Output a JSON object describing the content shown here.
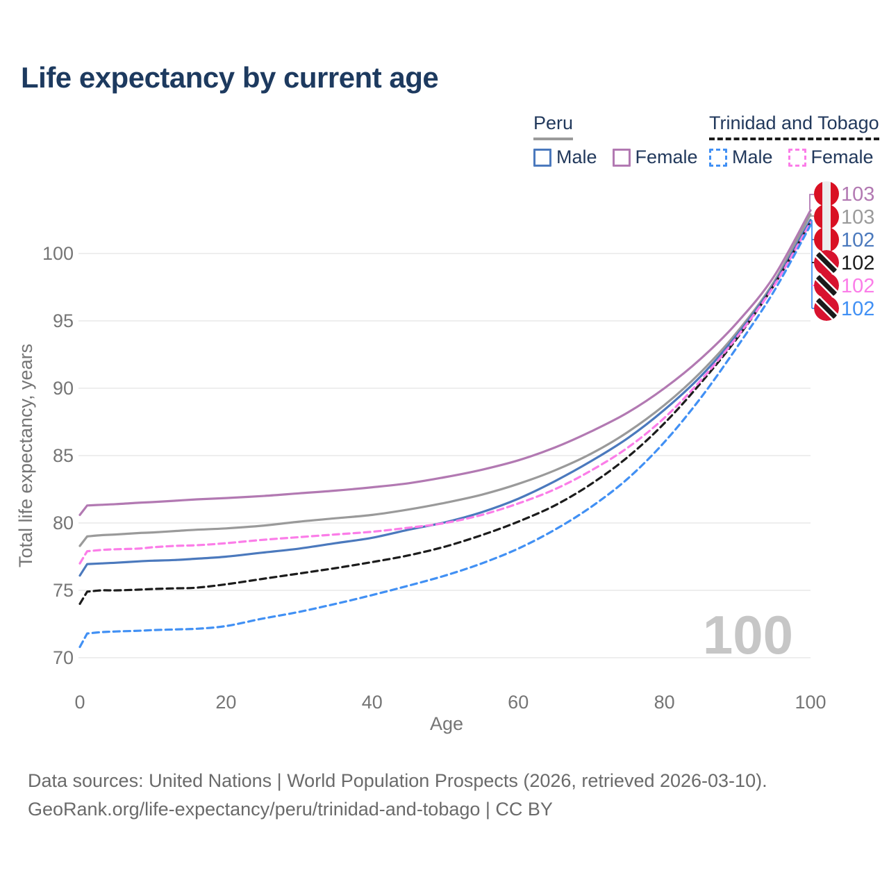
{
  "title": "Life expectancy by current age",
  "legend": {
    "groups": [
      {
        "label": "Peru",
        "line_style": "solid",
        "underline_color": "#9a9a9a",
        "items": [
          {
            "label": "Male",
            "color": "#4b79bd"
          },
          {
            "label": "Female",
            "color": "#b279b2"
          }
        ]
      },
      {
        "label": "Trinidad and Tobago",
        "line_style": "dashed",
        "underline_color": "#1c1c1c",
        "items": [
          {
            "label": "Male",
            "color": "#4190f4"
          },
          {
            "label": "Female",
            "color": "#fb7de8"
          }
        ]
      }
    ]
  },
  "age_counter": "100",
  "footer": {
    "line1": "Data sources: United Nations | World Population Prospects (2026, retrieved 2026-03-10).",
    "line2": "GeoRank.org/life-expectancy/peru/trinidad-and-tobago | CC BY"
  },
  "chart_data": {
    "type": "line",
    "title": "Life expectancy by current age",
    "xlabel": "Age",
    "ylabel": "Total life expectancy, years",
    "xlim": [
      0,
      100
    ],
    "ylim": [
      69.5,
      104.5
    ],
    "xticks": [
      0,
      20,
      40,
      60,
      80,
      100
    ],
    "yticks": [
      70,
      75,
      80,
      85,
      90,
      95,
      100
    ],
    "grid": "horizontal",
    "legend_position": "top-right",
    "series": [
      {
        "id": "peru-female",
        "name": "Peru Female",
        "country": "Peru",
        "sex": "Female",
        "color": "#b279b2",
        "dashed": false,
        "flag_icon": "peru-flag-icon",
        "end_label": "103",
        "label_slot": 0,
        "points": [
          [
            0,
            80.6
          ],
          [
            1,
            81.3
          ],
          [
            3,
            81.35
          ],
          [
            5,
            81.4
          ],
          [
            8,
            81.5
          ],
          [
            10,
            81.55
          ],
          [
            13,
            81.65
          ],
          [
            16,
            81.75
          ],
          [
            20,
            81.85
          ],
          [
            25,
            82.0
          ],
          [
            30,
            82.2
          ],
          [
            35,
            82.4
          ],
          [
            40,
            82.65
          ],
          [
            45,
            82.95
          ],
          [
            50,
            83.4
          ],
          [
            55,
            83.95
          ],
          [
            60,
            84.65
          ],
          [
            65,
            85.6
          ],
          [
            70,
            86.8
          ],
          [
            75,
            88.2
          ],
          [
            80,
            90.0
          ],
          [
            85,
            92.2
          ],
          [
            90,
            94.9
          ],
          [
            95,
            98.3
          ],
          [
            100,
            103.2
          ]
        ]
      },
      {
        "id": "peru-all",
        "name": "Peru",
        "country": "Peru",
        "sex": "All",
        "color": "#9a9a9a",
        "dashed": false,
        "flag_icon": "peru-flag-icon",
        "end_label": "103",
        "label_slot": 1,
        "points": [
          [
            0,
            78.3
          ],
          [
            1,
            79.0
          ],
          [
            3,
            79.1
          ],
          [
            5,
            79.15
          ],
          [
            8,
            79.25
          ],
          [
            10,
            79.3
          ],
          [
            13,
            79.4
          ],
          [
            16,
            79.5
          ],
          [
            20,
            79.6
          ],
          [
            25,
            79.8
          ],
          [
            30,
            80.1
          ],
          [
            35,
            80.35
          ],
          [
            40,
            80.6
          ],
          [
            45,
            81.0
          ],
          [
            50,
            81.5
          ],
          [
            55,
            82.1
          ],
          [
            60,
            82.9
          ],
          [
            65,
            83.9
          ],
          [
            70,
            85.15
          ],
          [
            75,
            86.75
          ],
          [
            80,
            88.75
          ],
          [
            85,
            91.2
          ],
          [
            90,
            94.2
          ],
          [
            95,
            97.9
          ],
          [
            100,
            102.9
          ]
        ]
      },
      {
        "id": "peru-male",
        "name": "Peru Male",
        "country": "Peru",
        "sex": "Male",
        "color": "#4b79bd",
        "dashed": false,
        "flag_icon": "peru-flag-icon",
        "end_label": "102",
        "label_slot": 2,
        "points": [
          [
            0,
            76.1
          ],
          [
            1,
            76.95
          ],
          [
            3,
            77.0
          ],
          [
            5,
            77.05
          ],
          [
            8,
            77.15
          ],
          [
            10,
            77.2
          ],
          [
            13,
            77.25
          ],
          [
            16,
            77.35
          ],
          [
            20,
            77.5
          ],
          [
            25,
            77.8
          ],
          [
            30,
            78.1
          ],
          [
            35,
            78.5
          ],
          [
            40,
            78.9
          ],
          [
            45,
            79.5
          ],
          [
            50,
            80.05
          ],
          [
            55,
            80.8
          ],
          [
            60,
            81.8
          ],
          [
            65,
            83.1
          ],
          [
            70,
            84.6
          ],
          [
            75,
            86.3
          ],
          [
            80,
            88.4
          ],
          [
            85,
            90.9
          ],
          [
            90,
            94.0
          ],
          [
            95,
            97.75
          ],
          [
            100,
            102.5
          ]
        ]
      },
      {
        "id": "tt-all",
        "name": "Trinidad and Tobago",
        "country": "Trinidad and Tobago",
        "sex": "All",
        "color": "#1c1c1c",
        "dashed": true,
        "flag_icon": "trinidad-and-tobago-flag-icon",
        "end_label": "102",
        "label_slot": 3,
        "points": [
          [
            0,
            74.0
          ],
          [
            1,
            74.9
          ],
          [
            3,
            75.0
          ],
          [
            5,
            75.0
          ],
          [
            8,
            75.05
          ],
          [
            10,
            75.1
          ],
          [
            13,
            75.15
          ],
          [
            16,
            75.2
          ],
          [
            20,
            75.45
          ],
          [
            25,
            75.85
          ],
          [
            30,
            76.25
          ],
          [
            35,
            76.65
          ],
          [
            40,
            77.1
          ],
          [
            45,
            77.6
          ],
          [
            50,
            78.25
          ],
          [
            55,
            79.1
          ],
          [
            60,
            80.1
          ],
          [
            65,
            81.3
          ],
          [
            70,
            82.9
          ],
          [
            75,
            84.9
          ],
          [
            80,
            87.4
          ],
          [
            85,
            90.4
          ],
          [
            90,
            93.75
          ],
          [
            95,
            97.65
          ],
          [
            100,
            102.3
          ]
        ]
      },
      {
        "id": "tt-female",
        "name": "Trinidad and Tobago Female",
        "country": "Trinidad and Tobago",
        "sex": "Female",
        "color": "#fb7de8",
        "dashed": true,
        "flag_icon": "trinidad-and-tobago-flag-icon",
        "end_label": "102",
        "label_slot": 4,
        "points": [
          [
            0,
            77.0
          ],
          [
            1,
            77.9
          ],
          [
            3,
            78.0
          ],
          [
            5,
            78.05
          ],
          [
            8,
            78.1
          ],
          [
            10,
            78.2
          ],
          [
            13,
            78.3
          ],
          [
            16,
            78.35
          ],
          [
            20,
            78.5
          ],
          [
            25,
            78.75
          ],
          [
            30,
            78.95
          ],
          [
            35,
            79.15
          ],
          [
            40,
            79.35
          ],
          [
            45,
            79.65
          ],
          [
            50,
            80.0
          ],
          [
            55,
            80.6
          ],
          [
            60,
            81.45
          ],
          [
            65,
            82.5
          ],
          [
            70,
            83.9
          ],
          [
            75,
            85.6
          ],
          [
            80,
            87.8
          ],
          [
            85,
            90.6
          ],
          [
            90,
            93.85
          ],
          [
            95,
            97.6
          ],
          [
            100,
            102.3
          ]
        ]
      },
      {
        "id": "tt-male",
        "name": "Trinidad and Tobago Male",
        "country": "Trinidad and Tobago",
        "sex": "Male",
        "color": "#4190f4",
        "dashed": true,
        "flag_icon": "trinidad-and-tobago-flag-icon",
        "end_label": "102",
        "label_slot": 5,
        "points": [
          [
            0,
            70.8
          ],
          [
            1,
            71.8
          ],
          [
            3,
            71.9
          ],
          [
            5,
            71.95
          ],
          [
            8,
            72.0
          ],
          [
            10,
            72.05
          ],
          [
            13,
            72.1
          ],
          [
            16,
            72.15
          ],
          [
            20,
            72.35
          ],
          [
            25,
            72.9
          ],
          [
            30,
            73.4
          ],
          [
            35,
            74.0
          ],
          [
            40,
            74.65
          ],
          [
            45,
            75.35
          ],
          [
            50,
            76.1
          ],
          [
            55,
            77.0
          ],
          [
            60,
            78.1
          ],
          [
            65,
            79.5
          ],
          [
            70,
            81.2
          ],
          [
            75,
            83.3
          ],
          [
            80,
            86.0
          ],
          [
            85,
            89.3
          ],
          [
            90,
            93.1
          ],
          [
            95,
            97.2
          ],
          [
            100,
            102.1
          ]
        ]
      }
    ]
  }
}
